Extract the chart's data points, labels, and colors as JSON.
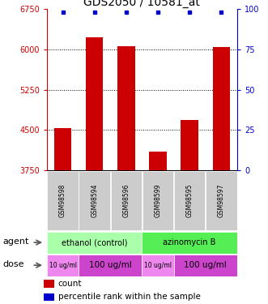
{
  "title": "GDS2050 / 10581_at",
  "samples": [
    "GSM98598",
    "GSM98594",
    "GSM98596",
    "GSM98599",
    "GSM98595",
    "GSM98597"
  ],
  "bar_values": [
    4530,
    6230,
    6060,
    4100,
    4680,
    6040
  ],
  "ylim_left": [
    3750,
    6750
  ],
  "ylim_right": [
    0,
    100
  ],
  "yticks_left": [
    3750,
    4500,
    5250,
    6000,
    6750
  ],
  "yticks_right": [
    0,
    25,
    50,
    75,
    100
  ],
  "bar_color": "#cc0000",
  "dot_color": "#0000cc",
  "agent_groups": [
    {
      "label": "ethanol (control)",
      "color": "#aaffaa",
      "start": 0,
      "end": 3
    },
    {
      "label": "azinomycin B",
      "color": "#55ee55",
      "start": 3,
      "end": 6
    }
  ],
  "dose_groups": [
    {
      "label": "10 ug/ml",
      "color": "#ee88ee",
      "start": 0,
      "end": 1,
      "fontsize": 5.5
    },
    {
      "label": "100 ug/ml",
      "color": "#cc44cc",
      "start": 1,
      "end": 3,
      "fontsize": 7.5
    },
    {
      "label": "10 ug/ml",
      "color": "#ee88ee",
      "start": 3,
      "end": 4,
      "fontsize": 5.5
    },
    {
      "label": "100 ug/ml",
      "color": "#cc44cc",
      "start": 4,
      "end": 6,
      "fontsize": 7.5
    }
  ],
  "sample_box_color": "#cccccc",
  "left_axis_color": "#cc0000",
  "right_axis_color": "#0000cc",
  "background_color": "#ffffff",
  "grid_yticks": [
    4500,
    5250,
    6000
  ]
}
